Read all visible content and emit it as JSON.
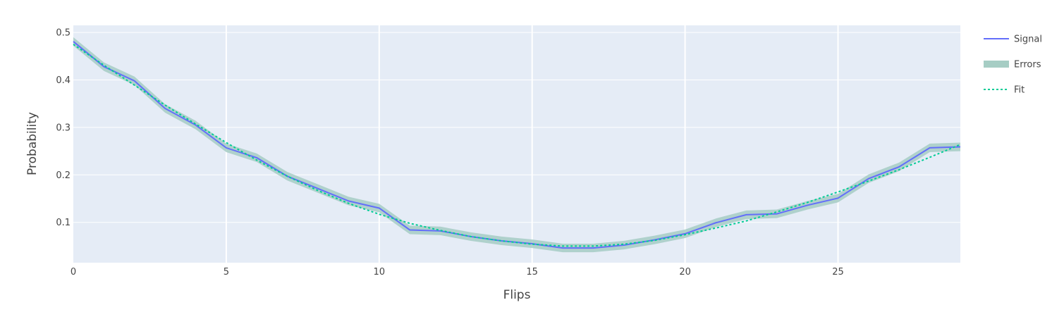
{
  "chart_data": {
    "type": "line",
    "title": "",
    "xlabel": "Flips",
    "ylabel": "Probability",
    "xlim": [
      0,
      29
    ],
    "ylim": [
      0.015,
      0.515
    ],
    "x_ticks": [
      0,
      5,
      10,
      15,
      20,
      25
    ],
    "y_ticks": [
      0.1,
      0.2,
      0.3,
      0.4,
      0.5
    ],
    "grid": true,
    "legend_position": "top-right",
    "background_color": "#e5ecf6",
    "x": [
      0,
      1,
      2,
      3,
      4,
      5,
      6,
      7,
      8,
      9,
      10,
      11,
      12,
      13,
      14,
      15,
      16,
      17,
      18,
      19,
      20,
      21,
      22,
      23,
      24,
      25,
      26,
      27,
      28,
      29
    ],
    "series": [
      {
        "name": "Signal",
        "style": "solid",
        "color": "#636efa",
        "values": [
          0.481,
          0.428,
          0.398,
          0.34,
          0.305,
          0.257,
          0.236,
          0.197,
          0.171,
          0.145,
          0.13,
          0.084,
          0.082,
          0.07,
          0.061,
          0.055,
          0.046,
          0.046,
          0.052,
          0.063,
          0.076,
          0.099,
          0.116,
          0.118,
          0.136,
          0.151,
          0.192,
          0.217,
          0.257,
          0.259
        ]
      },
      {
        "name": "Errors",
        "style": "band",
        "color": "#a6cdc4",
        "half_width": 0.009
      },
      {
        "name": "Fit",
        "style": "dotted",
        "color": "#00cc96",
        "values": [
          0.475,
          0.431,
          0.389,
          0.347,
          0.307,
          0.268,
          0.231,
          0.197,
          0.167,
          0.14,
          0.117,
          0.098,
          0.083,
          0.07,
          0.061,
          0.054,
          0.05,
          0.05,
          0.054,
          0.062,
          0.074,
          0.088,
          0.103,
          0.122,
          0.142,
          0.164,
          0.187,
          0.211,
          0.237,
          0.264
        ]
      }
    ]
  }
}
